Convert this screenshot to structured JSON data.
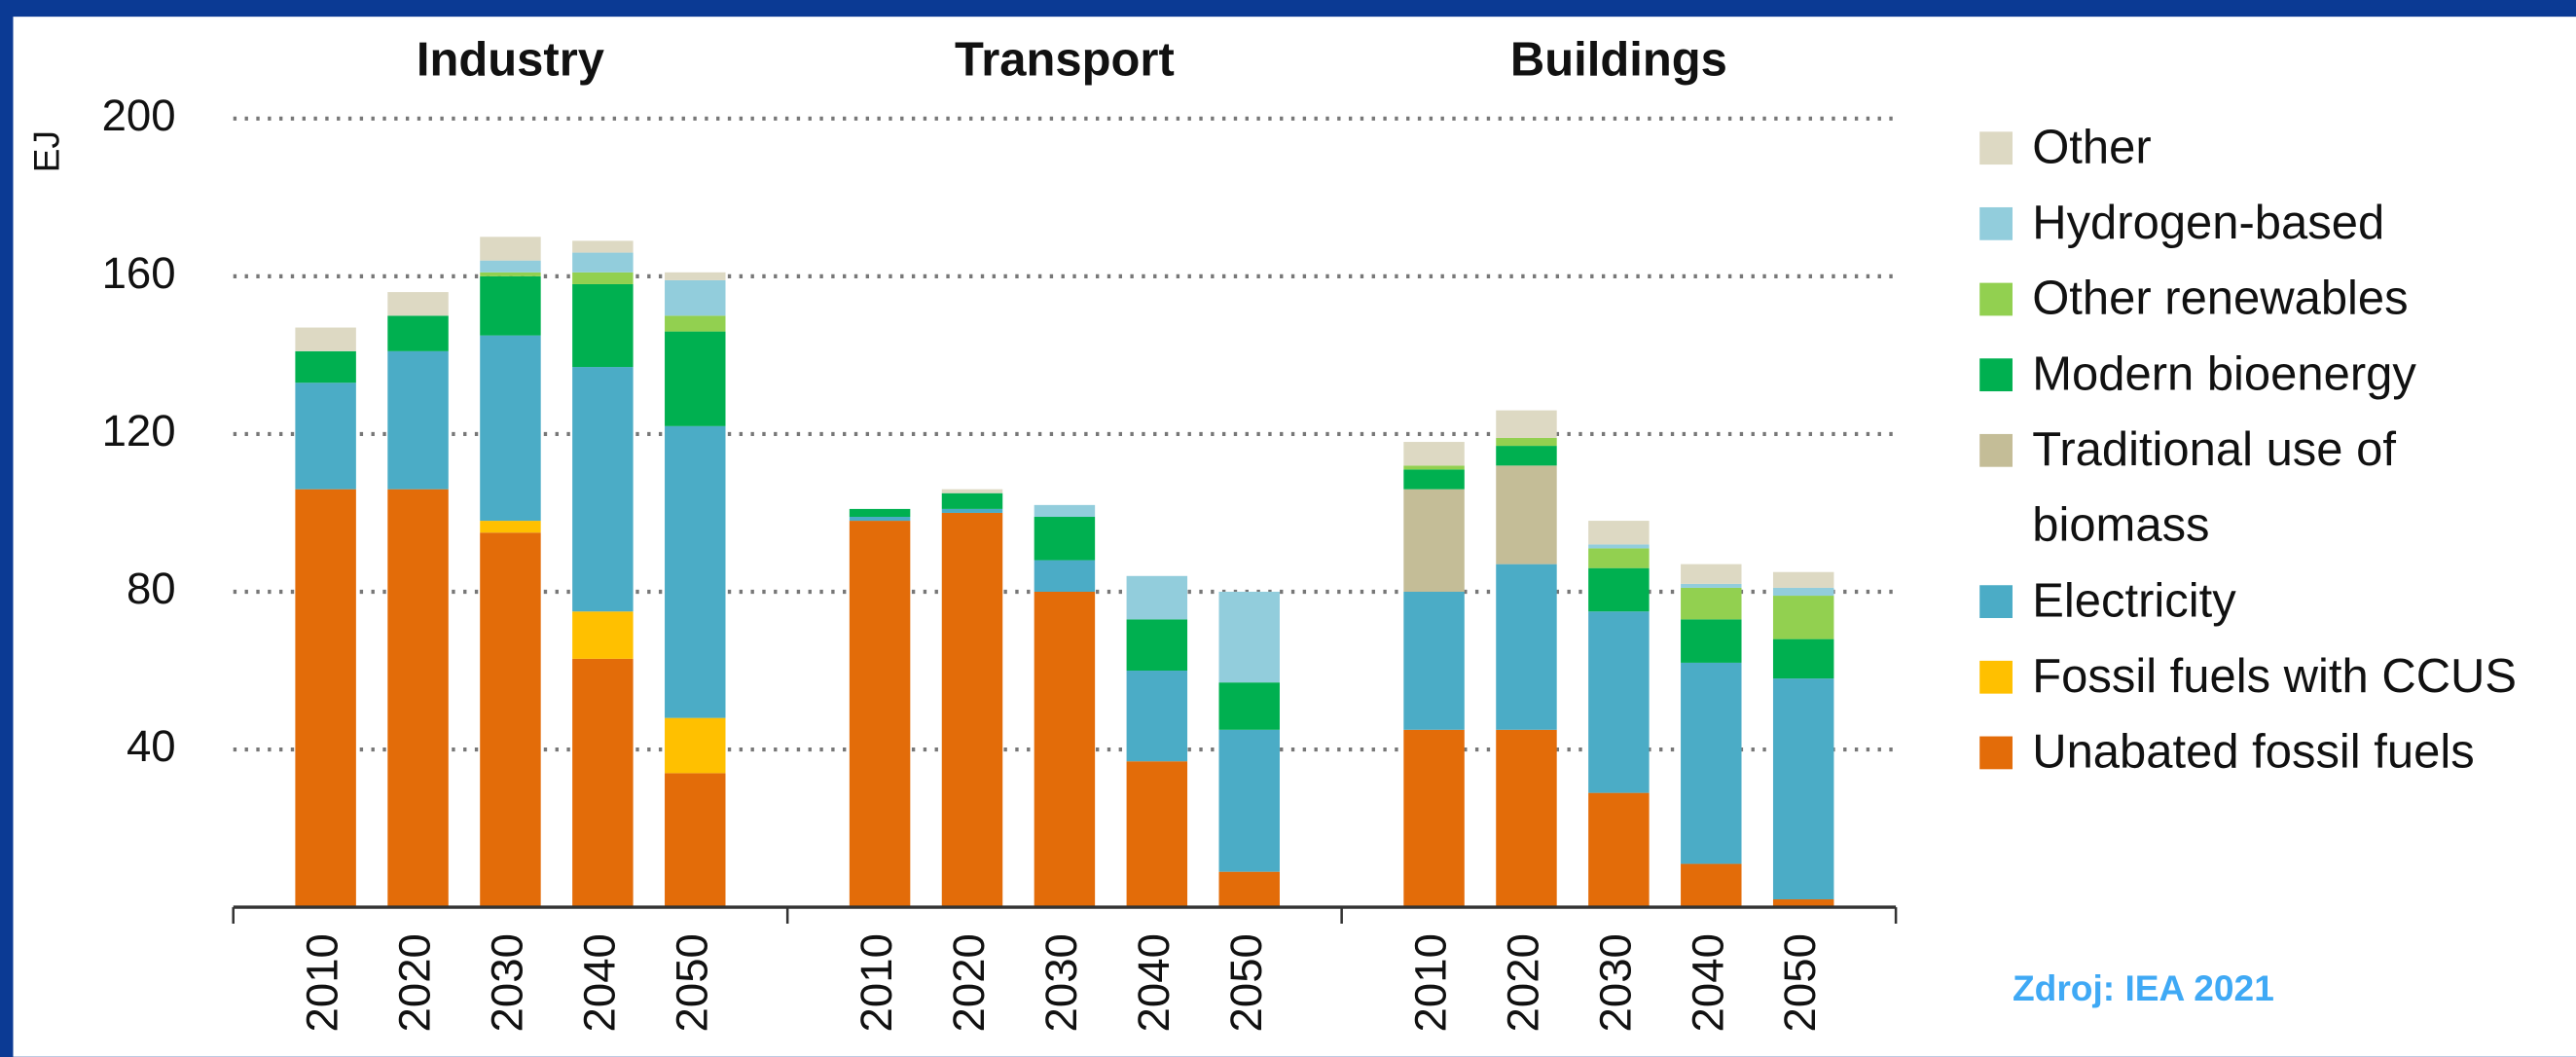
{
  "chart_data": {
    "type": "stacked-bar",
    "groups": [
      "Industry",
      "Transport",
      "Buildings"
    ],
    "categories": [
      "2010",
      "2020",
      "2030",
      "2040",
      "2050",
      "2010",
      "2020",
      "2030",
      "2040",
      "2050",
      "2010",
      "2020",
      "2030",
      "2040",
      "2050"
    ],
    "y_label": "EJ",
    "ylim": [
      0,
      200
    ],
    "yticks": [
      40,
      80,
      120,
      160,
      200
    ],
    "grid": true,
    "legend": "right",
    "source": "Zdroj: IEA 2021",
    "series": [
      {
        "name": "Unabated fossil fuels",
        "color": "#e36c09",
        "values": [
          106,
          106,
          95,
          63,
          34,
          98,
          100,
          80,
          37,
          9,
          45,
          45,
          29,
          11,
          2
        ]
      },
      {
        "name": "Fossil fuels with CCUS",
        "color": "#ffc000",
        "values": [
          0,
          0,
          3,
          12,
          14,
          0,
          0,
          0,
          0,
          0,
          0,
          0,
          0,
          0,
          0
        ]
      },
      {
        "name": "Electricity",
        "color": "#4bacc6",
        "values": [
          27,
          35,
          47,
          62,
          74,
          1,
          1,
          8,
          23,
          36,
          35,
          42,
          46,
          51,
          56
        ]
      },
      {
        "name": "Traditional use of biomass",
        "color": "#c4bd97",
        "values": [
          0,
          0,
          0,
          0,
          0,
          0,
          0,
          0,
          0,
          0,
          26,
          25,
          0,
          0,
          0
        ]
      },
      {
        "name": "Modern bioenergy",
        "color": "#00b050",
        "values": [
          8,
          9,
          15,
          21,
          24,
          2,
          4,
          11,
          13,
          12,
          5,
          5,
          11,
          11,
          10
        ]
      },
      {
        "name": "Other renewables",
        "color": "#92d050",
        "values": [
          0,
          0,
          1,
          3,
          4,
          0,
          0,
          0,
          0,
          0,
          1,
          2,
          5,
          8,
          11
        ]
      },
      {
        "name": "Hydrogen-based",
        "color": "#92cddc",
        "values": [
          0,
          0,
          3,
          5,
          9,
          0,
          0,
          3,
          11,
          23,
          0,
          0,
          1,
          1,
          2
        ]
      },
      {
        "name": "Other",
        "color": "#ddd9c3",
        "values": [
          6,
          6,
          6,
          3,
          2,
          0,
          1,
          0,
          0,
          0,
          6,
          7,
          6,
          5,
          4
        ]
      }
    ]
  }
}
